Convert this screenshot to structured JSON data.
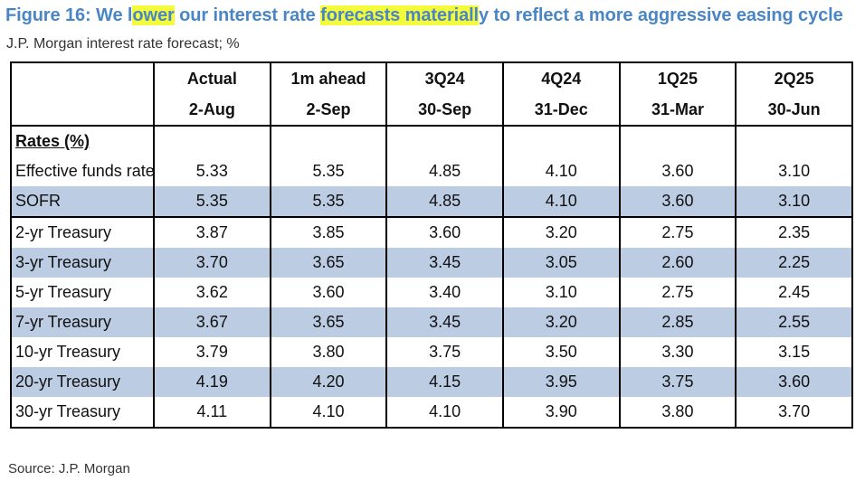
{
  "title": {
    "part1": "Figure 16: We l",
    "hl1": "ower",
    "part2": " our interest rate ",
    "hl2": "forecasts materiall",
    "part3": "y to reflect a more aggressive easing cycle"
  },
  "subtitle": "J.P. Morgan interest rate forecast; %",
  "table": {
    "headers_top": [
      "Actual",
      "1m ahead",
      "3Q24",
      "4Q24",
      "1Q25",
      "2Q25"
    ],
    "headers_bottom": [
      "2-Aug",
      "2-Sep",
      "30-Sep",
      "31-Dec",
      "31-Mar",
      "30-Jun"
    ],
    "section_label": "Rates (%)",
    "rows": [
      {
        "label": "Effective funds rate",
        "values": [
          "5.33",
          "5.35",
          "4.85",
          "4.10",
          "3.60",
          "3.10"
        ]
      },
      {
        "label": "SOFR",
        "values": [
          "5.35",
          "5.35",
          "4.85",
          "4.10",
          "3.60",
          "3.10"
        ]
      },
      {
        "label": "2-yr Treasury",
        "values": [
          "3.87",
          "3.85",
          "3.60",
          "3.20",
          "2.75",
          "2.35"
        ]
      },
      {
        "label": "3-yr Treasury",
        "values": [
          "3.70",
          "3.65",
          "3.45",
          "3.05",
          "2.60",
          "2.25"
        ]
      },
      {
        "label": "5-yr Treasury",
        "values": [
          "3.62",
          "3.60",
          "3.40",
          "3.10",
          "2.75",
          "2.45"
        ]
      },
      {
        "label": "7-yr Treasury",
        "values": [
          "3.67",
          "3.65",
          "3.45",
          "3.20",
          "2.85",
          "2.55"
        ]
      },
      {
        "label": "10-yr Treasury",
        "values": [
          "3.79",
          "3.80",
          "3.75",
          "3.50",
          "3.30",
          "3.15"
        ]
      },
      {
        "label": "20-yr Treasury",
        "values": [
          "4.19",
          "4.20",
          "4.15",
          "3.95",
          "3.75",
          "3.60"
        ]
      },
      {
        "label": "30-yr Treasury",
        "values": [
          "4.11",
          "4.10",
          "4.10",
          "3.90",
          "3.80",
          "3.70"
        ]
      }
    ]
  },
  "source": "Source: J.P. Morgan",
  "colors": {
    "title": "#4a86c5",
    "highlight": "#f4fb3a",
    "row_shade": "#bccce3"
  }
}
